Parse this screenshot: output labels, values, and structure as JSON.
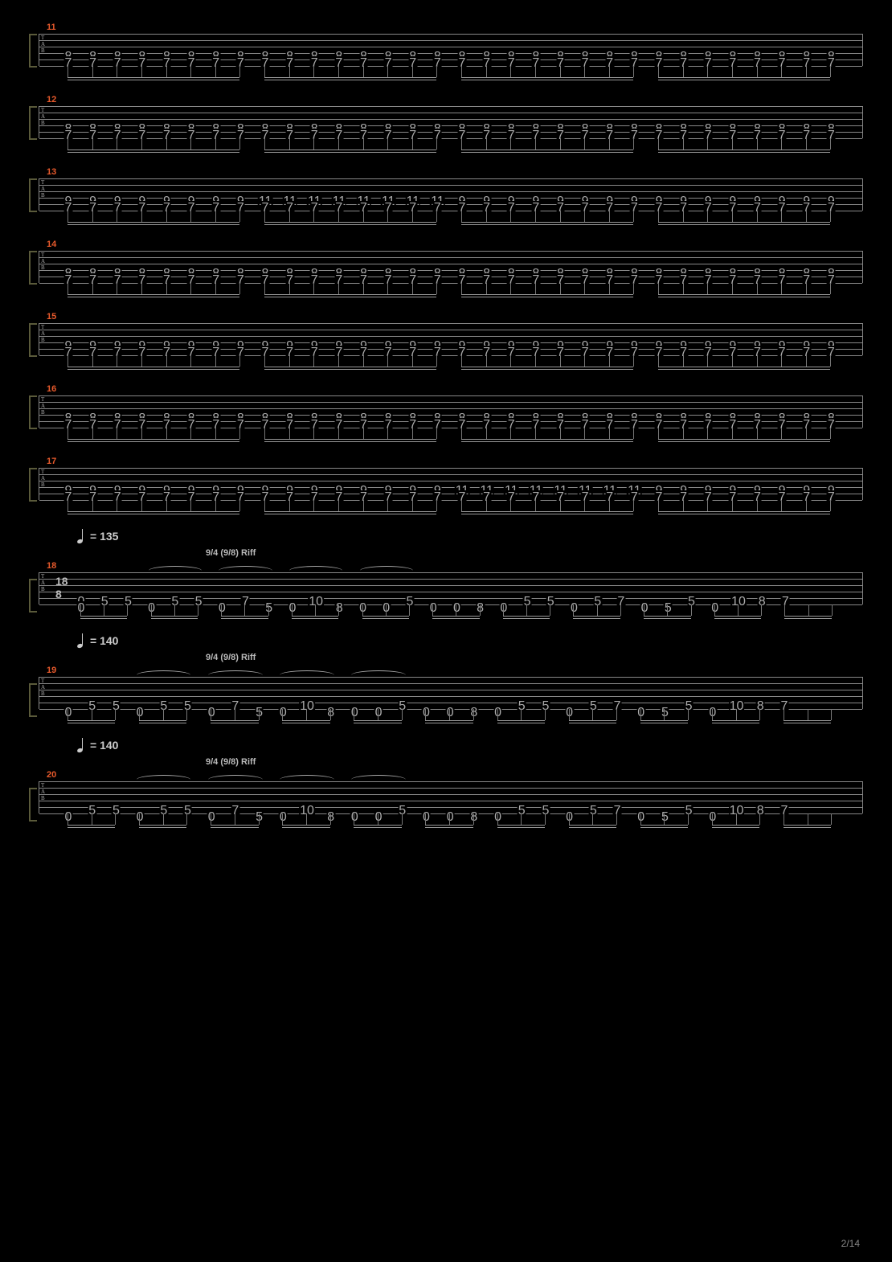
{
  "page_number": "2/14",
  "colors": {
    "background": "#000000",
    "staff_line": "#888888",
    "bar_number": "#e85a2c",
    "note_text": "#cccccc",
    "bracket": "#5a5a3a",
    "beam": "#999999"
  },
  "staff": {
    "strings": 6,
    "line_spacing": 8,
    "tab_label": "T\nA\nB"
  },
  "systems": [
    {
      "bar": "11",
      "height_extra": 0,
      "groups": 4,
      "notes_per_group": 8,
      "two_string": true,
      "upper_string_index": 3,
      "lower_string_index": 4,
      "note_pattern_upper": [
        "8",
        "8",
        "8",
        "8",
        "8",
        "8",
        "8",
        "8"
      ],
      "note_pattern_lower": [
        "7",
        "7",
        "7",
        "7",
        "7",
        "7",
        "7",
        "7"
      ],
      "group_overrides": {}
    },
    {
      "bar": "12",
      "groups": 4,
      "notes_per_group": 8,
      "two_string": true,
      "upper_string_index": 3,
      "lower_string_index": 4,
      "note_pattern_upper": [
        "8",
        "8",
        "8",
        "8",
        "8",
        "8",
        "8",
        "8"
      ],
      "note_pattern_lower": [
        "7",
        "7",
        "7",
        "7",
        "7",
        "7",
        "7",
        "7"
      ],
      "group_overrides": {}
    },
    {
      "bar": "13",
      "groups": 4,
      "notes_per_group": 8,
      "two_string": true,
      "upper_string_index": 3,
      "lower_string_index": 4,
      "note_pattern_upper": [
        "9",
        "9",
        "9",
        "9",
        "9",
        "9",
        "9",
        "9"
      ],
      "note_pattern_lower": [
        "7",
        "7",
        "7",
        "7",
        "7",
        "7",
        "7",
        "7"
      ],
      "group_overrides": {
        "1": {
          "upper": [
            "11",
            "11",
            "11",
            "11",
            "11",
            "11",
            "11",
            "11"
          ]
        }
      }
    },
    {
      "bar": "14",
      "groups": 4,
      "notes_per_group": 8,
      "two_string": true,
      "upper_string_index": 3,
      "lower_string_index": 4,
      "note_pattern_upper": [
        "8",
        "8",
        "8",
        "8",
        "8",
        "8",
        "8",
        "8"
      ],
      "note_pattern_lower": [
        "7",
        "7",
        "7",
        "7",
        "7",
        "7",
        "7",
        "7"
      ],
      "group_overrides": {}
    },
    {
      "bar": "15",
      "groups": 4,
      "notes_per_group": 8,
      "two_string": true,
      "upper_string_index": 3,
      "lower_string_index": 4,
      "note_pattern_upper": [
        "9",
        "9",
        "9",
        "9",
        "9",
        "9",
        "9",
        "9"
      ],
      "note_pattern_lower": [
        "7",
        "7",
        "7",
        "7",
        "7",
        "7",
        "7",
        "7"
      ],
      "group_overrides": {}
    },
    {
      "bar": "16",
      "groups": 4,
      "notes_per_group": 8,
      "two_string": true,
      "upper_string_index": 3,
      "lower_string_index": 4,
      "note_pattern_upper": [
        "8",
        "8",
        "8",
        "8",
        "8",
        "8",
        "8",
        "8"
      ],
      "note_pattern_lower": [
        "7",
        "7",
        "7",
        "7",
        "7",
        "7",
        "7",
        "7"
      ],
      "group_overrides": {}
    },
    {
      "bar": "17",
      "groups": 4,
      "notes_per_group": 8,
      "two_string": true,
      "upper_string_index": 3,
      "lower_string_index": 4,
      "note_pattern_upper": [
        "9",
        "9",
        "9",
        "9",
        "9",
        "9",
        "9",
        "9"
      ],
      "note_pattern_lower": [
        "7",
        "7",
        "7",
        "7",
        "7",
        "7",
        "7",
        "7"
      ],
      "group_overrides": {
        "2": {
          "upper": [
            "11",
            "11",
            "11",
            "11",
            "11",
            "11",
            "11",
            "11"
          ]
        }
      }
    },
    {
      "bar": "18",
      "tempo": "= 135",
      "section": "9/4 (9/8) Riff",
      "time_sig": "18\n8",
      "height_extra": 14,
      "riff": true,
      "slurs": [
        1,
        2,
        3,
        4
      ],
      "riff_groups": [
        {
          "s4": [
            "0",
            "5",
            "5"
          ],
          "s5": [
            "0",
            "",
            ""
          ]
        },
        {
          "s4": [
            "",
            "5",
            "5"
          ],
          "s5": [
            "0",
            "",
            ""
          ]
        },
        {
          "s4": [
            "",
            "7",
            ""
          ],
          "s5": [
            "0",
            "",
            "5"
          ]
        },
        {
          "s4": [
            "",
            "10",
            ""
          ],
          "s5": [
            "0",
            "",
            "8"
          ]
        },
        {
          "s4": [
            "",
            "",
            "5"
          ],
          "s5": [
            "0",
            "0",
            ""
          ]
        },
        {
          "s4": [
            "",
            "",
            ""
          ],
          "s5": [
            "0",
            "0",
            "8"
          ]
        },
        {
          "s4": [
            "",
            "5",
            "5"
          ],
          "s5": [
            "0",
            "",
            ""
          ]
        },
        {
          "s4": [
            "",
            "5",
            "7"
          ],
          "s5": [
            "0",
            "",
            ""
          ]
        },
        {
          "s4": [
            "",
            "",
            "5"
          ],
          "s5": [
            "0",
            "5",
            ""
          ]
        },
        {
          "s4": [
            "",
            "10",
            "8"
          ],
          "s5": [
            "0",
            "",
            ""
          ]
        },
        {
          "s4": [
            "7",
            "",
            ""
          ],
          "s5": [
            "",
            "",
            ""
          ]
        }
      ]
    },
    {
      "bar": "19",
      "tempo": "= 140",
      "section": "9/4 (9/8) Riff",
      "riff": true,
      "slurs": [
        1,
        2,
        3,
        4
      ],
      "riff_groups": [
        {
          "s4": [
            "",
            "5",
            "5"
          ],
          "s5": [
            "0",
            "",
            ""
          ]
        },
        {
          "s4": [
            "",
            "5",
            "5"
          ],
          "s5": [
            "0",
            "",
            ""
          ]
        },
        {
          "s4": [
            "",
            "7",
            ""
          ],
          "s5": [
            "0",
            "",
            "5"
          ]
        },
        {
          "s4": [
            "",
            "10",
            ""
          ],
          "s5": [
            "0",
            "",
            "8"
          ]
        },
        {
          "s4": [
            "",
            "",
            "5"
          ],
          "s5": [
            "0",
            "0",
            ""
          ]
        },
        {
          "s4": [
            "",
            "",
            ""
          ],
          "s5": [
            "0",
            "0",
            "8"
          ]
        },
        {
          "s4": [
            "",
            "5",
            "5"
          ],
          "s5": [
            "0",
            "",
            ""
          ]
        },
        {
          "s4": [
            "",
            "5",
            "7"
          ],
          "s5": [
            "0",
            "",
            ""
          ]
        },
        {
          "s4": [
            "",
            "",
            "5"
          ],
          "s5": [
            "0",
            "5",
            ""
          ]
        },
        {
          "s4": [
            "",
            "10",
            "8"
          ],
          "s5": [
            "0",
            "",
            ""
          ]
        },
        {
          "s4": [
            "7",
            "",
            ""
          ],
          "s5": [
            "",
            "",
            ""
          ]
        }
      ]
    },
    {
      "bar": "20",
      "tempo": "= 140",
      "section": "9/4 (9/8) Riff",
      "riff": true,
      "slurs": [
        1,
        2,
        3,
        4
      ],
      "riff_groups": [
        {
          "s4": [
            "",
            "5",
            "5"
          ],
          "s5": [
            "0",
            "",
            ""
          ]
        },
        {
          "s4": [
            "",
            "5",
            "5"
          ],
          "s5": [
            "0",
            "",
            ""
          ]
        },
        {
          "s4": [
            "",
            "7",
            ""
          ],
          "s5": [
            "0",
            "",
            "5"
          ]
        },
        {
          "s4": [
            "",
            "10",
            ""
          ],
          "s5": [
            "0",
            "",
            "8"
          ]
        },
        {
          "s4": [
            "",
            "",
            "5"
          ],
          "s5": [
            "0",
            "0",
            ""
          ]
        },
        {
          "s4": [
            "",
            "",
            ""
          ],
          "s5": [
            "0",
            "0",
            "8"
          ]
        },
        {
          "s4": [
            "",
            "5",
            "5"
          ],
          "s5": [
            "0",
            "",
            ""
          ]
        },
        {
          "s4": [
            "",
            "5",
            "7"
          ],
          "s5": [
            "0",
            "",
            ""
          ]
        },
        {
          "s4": [
            "",
            "",
            "5"
          ],
          "s5": [
            "0",
            "5",
            ""
          ]
        },
        {
          "s4": [
            "",
            "10",
            "8"
          ],
          "s5": [
            "0",
            "",
            ""
          ]
        },
        {
          "s4": [
            "7",
            "",
            ""
          ],
          "s5": [
            "",
            "",
            ""
          ]
        }
      ]
    }
  ]
}
